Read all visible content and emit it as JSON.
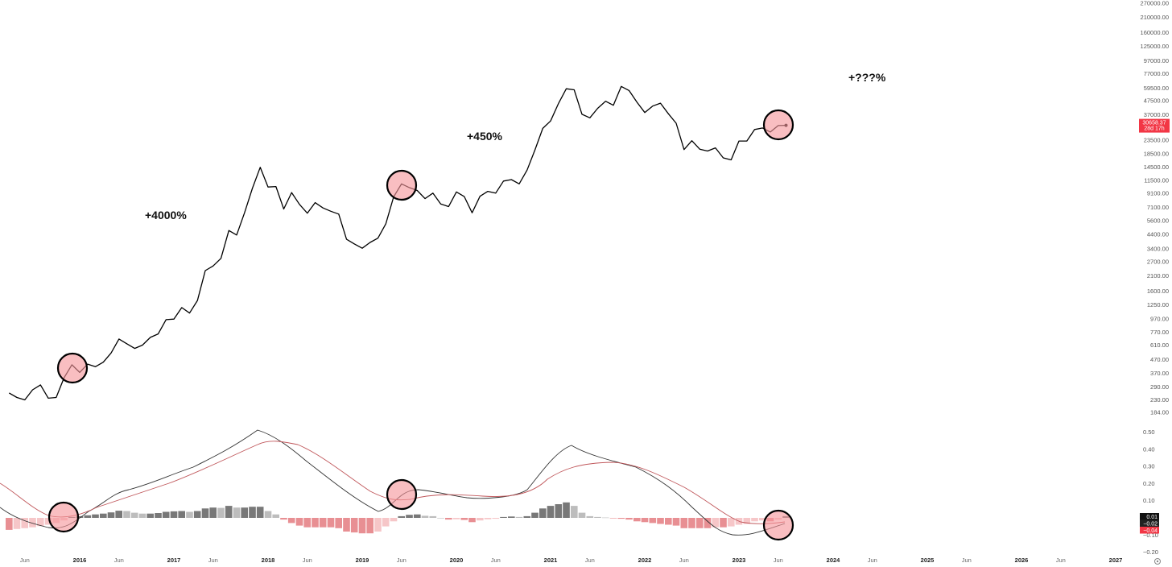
{
  "chart_data": [
    {
      "type": "line",
      "title": "",
      "yscale": "log",
      "ylim": [
        184,
        270000
      ],
      "y_ticks": [
        "270000.00",
        "210000.00",
        "160000.00",
        "125000.00",
        "97000.00",
        "77000.00",
        "59500.00",
        "47500.00",
        "37000.00",
        "23500.00",
        "18500.00",
        "14500.00",
        "11500.00",
        "9100.00",
        "7100.00",
        "5600.00",
        "4400.00",
        "3400.00",
        "2700.00",
        "2100.00",
        "1600.00",
        "1250.00",
        "970.00",
        "770.00",
        "610.00",
        "470.00",
        "370.00",
        "290.00",
        "230.00",
        "184.00"
      ],
      "x_ticks": [
        "Jun",
        "2016",
        "Jun",
        "2017",
        "Jun",
        "2018",
        "Jun",
        "2019",
        "Jun",
        "2020",
        "Jun",
        "2021",
        "Jun",
        "2022",
        "Jun",
        "2023",
        "Jun",
        "2024",
        "Jun",
        "2025",
        "Jun",
        "2026",
        "Jun",
        "2027"
      ],
      "series": [
        {
          "values": [
            {
              "x": "2015-04",
              "y": 260
            },
            {
              "x": "2015-05",
              "y": 240
            },
            {
              "x": "2015-06",
              "y": 230
            },
            {
              "x": "2015-07",
              "y": 275
            },
            {
              "x": "2015-08",
              "y": 300
            },
            {
              "x": "2015-09",
              "y": 237
            },
            {
              "x": "2015-10",
              "y": 240
            },
            {
              "x": "2015-11",
              "y": 340
            },
            {
              "x": "2015-12",
              "y": 430
            },
            {
              "x": "2016-01",
              "y": 375
            },
            {
              "x": "2016-02",
              "y": 435
            },
            {
              "x": "2016-03",
              "y": 415
            },
            {
              "x": "2016-04",
              "y": 450
            },
            {
              "x": "2016-05",
              "y": 530
            },
            {
              "x": "2016-06",
              "y": 680
            },
            {
              "x": "2016-07",
              "y": 625
            },
            {
              "x": "2016-08",
              "y": 575
            },
            {
              "x": "2016-09",
              "y": 610
            },
            {
              "x": "2016-10",
              "y": 700
            },
            {
              "x": "2016-11",
              "y": 745
            },
            {
              "x": "2016-12",
              "y": 960
            },
            {
              "x": "2017-01",
              "y": 970
            },
            {
              "x": "2017-02",
              "y": 1190
            },
            {
              "x": "2017-03",
              "y": 1080
            },
            {
              "x": "2017-04",
              "y": 1350
            },
            {
              "x": "2017-05",
              "y": 2300
            },
            {
              "x": "2017-06",
              "y": 2500
            },
            {
              "x": "2017-07",
              "y": 2860
            },
            {
              "x": "2017-08",
              "y": 4700
            },
            {
              "x": "2017-09",
              "y": 4340
            },
            {
              "x": "2017-10",
              "y": 6450
            },
            {
              "x": "2017-11",
              "y": 9950
            },
            {
              "x": "2017-12",
              "y": 14500
            },
            {
              "x": "2018-01",
              "y": 10200
            },
            {
              "x": "2018-02",
              "y": 10300
            },
            {
              "x": "2018-03",
              "y": 6900
            },
            {
              "x": "2018-04",
              "y": 9250
            },
            {
              "x": "2018-05",
              "y": 7500
            },
            {
              "x": "2018-06",
              "y": 6400
            },
            {
              "x": "2018-07",
              "y": 7730
            },
            {
              "x": "2018-08",
              "y": 7030
            },
            {
              "x": "2018-09",
              "y": 6630
            },
            {
              "x": "2018-10",
              "y": 6300
            },
            {
              "x": "2018-11",
              "y": 4020
            },
            {
              "x": "2018-12",
              "y": 3700
            },
            {
              "x": "2019-01",
              "y": 3430
            },
            {
              "x": "2019-02",
              "y": 3800
            },
            {
              "x": "2019-03",
              "y": 4100
            },
            {
              "x": "2019-04",
              "y": 5300
            },
            {
              "x": "2019-05",
              "y": 8550
            },
            {
              "x": "2019-06",
              "y": 10800
            },
            {
              "x": "2019-07",
              "y": 10100
            },
            {
              "x": "2019-08",
              "y": 9600
            },
            {
              "x": "2019-09",
              "y": 8300
            },
            {
              "x": "2019-10",
              "y": 9150
            },
            {
              "x": "2019-11",
              "y": 7550
            },
            {
              "x": "2019-12",
              "y": 7200
            },
            {
              "x": "2020-01",
              "y": 9350
            },
            {
              "x": "2020-02",
              "y": 8600
            },
            {
              "x": "2020-03",
              "y": 6450
            },
            {
              "x": "2020-04",
              "y": 8650
            },
            {
              "x": "2020-05",
              "y": 9450
            },
            {
              "x": "2020-06",
              "y": 9150
            },
            {
              "x": "2020-07",
              "y": 11350
            },
            {
              "x": "2020-08",
              "y": 11650
            },
            {
              "x": "2020-09",
              "y": 10800
            },
            {
              "x": "2020-10",
              "y": 13800
            },
            {
              "x": "2020-11",
              "y": 19700
            },
            {
              "x": "2020-12",
              "y": 29000
            },
            {
              "x": "2021-01",
              "y": 33100
            },
            {
              "x": "2021-02",
              "y": 45200
            },
            {
              "x": "2021-03",
              "y": 58800
            },
            {
              "x": "2021-04",
              "y": 57700
            },
            {
              "x": "2021-05",
              "y": 37300
            },
            {
              "x": "2021-06",
              "y": 35000
            },
            {
              "x": "2021-07",
              "y": 41500
            },
            {
              "x": "2021-08",
              "y": 47100
            },
            {
              "x": "2021-09",
              "y": 43800
            },
            {
              "x": "2021-10",
              "y": 61300
            },
            {
              "x": "2021-11",
              "y": 57000
            },
            {
              "x": "2021-12",
              "y": 46300
            },
            {
              "x": "2022-01",
              "y": 38500
            },
            {
              "x": "2022-02",
              "y": 43200
            },
            {
              "x": "2022-03",
              "y": 45500
            },
            {
              "x": "2022-04",
              "y": 37700
            },
            {
              "x": "2022-05",
              "y": 31800
            },
            {
              "x": "2022-06",
              "y": 19900
            },
            {
              "x": "2022-07",
              "y": 23300
            },
            {
              "x": "2022-08",
              "y": 20050
            },
            {
              "x": "2022-09",
              "y": 19400
            },
            {
              "x": "2022-10",
              "y": 20500
            },
            {
              "x": "2022-11",
              "y": 17150
            },
            {
              "x": "2022-12",
              "y": 16550
            },
            {
              "x": "2023-01",
              "y": 23150
            },
            {
              "x": "2023-02",
              "y": 23150
            },
            {
              "x": "2023-03",
              "y": 28450
            },
            {
              "x": "2023-04",
              "y": 29250
            },
            {
              "x": "2023-05",
              "y": 27200
            },
            {
              "x": "2023-06",
              "y": 30500
            },
            {
              "x": "2023-07",
              "y": 30658
            }
          ]
        }
      ],
      "last_price_tag": {
        "value": "30658.37",
        "sub": "28d 17h",
        "color": "#f23645"
      },
      "annotations": [
        "+4000%",
        "+450%",
        "+???%"
      ],
      "highlight_circles_at": [
        "2016-01",
        "2019-06",
        "2023-07"
      ]
    },
    {
      "type": "bar",
      "title": "",
      "ylim": [
        -0.2,
        0.55
      ],
      "y_ticks": [
        "0.50",
        "0.40",
        "0.30",
        "0.20",
        "0.10",
        "−0.10",
        "−0.20"
      ],
      "value_tags": [
        {
          "text": "0.01",
          "bg": "#111111",
          "color": "#ffffff"
        },
        {
          "text": "−0.02",
          "bg": "#222222",
          "color": "#ffffff"
        },
        {
          "text": "−0.04",
          "bg": "#f23645",
          "color": "#ffffff"
        }
      ],
      "series": [
        {
          "values": [
            {
              "x": "2015-04",
              "y": -0.07
            },
            {
              "x": "2015-05",
              "y": -0.065
            },
            {
              "x": "2015-06",
              "y": -0.06
            },
            {
              "x": "2015-07",
              "y": -0.055
            },
            {
              "x": "2015-08",
              "y": -0.048
            },
            {
              "x": "2015-09",
              "y": -0.04
            },
            {
              "x": "2015-10",
              "y": -0.03
            },
            {
              "x": "2015-11",
              "y": -0.015
            },
            {
              "x": "2015-12",
              "y": 0.005
            },
            {
              "x": "2016-01",
              "y": 0.01
            },
            {
              "x": "2016-02",
              "y": 0.015
            },
            {
              "x": "2016-03",
              "y": 0.02
            },
            {
              "x": "2016-04",
              "y": 0.025
            },
            {
              "x": "2016-05",
              "y": 0.032
            },
            {
              "x": "2016-06",
              "y": 0.042
            },
            {
              "x": "2016-07",
              "y": 0.04
            },
            {
              "x": "2016-08",
              "y": 0.03
            },
            {
              "x": "2016-09",
              "y": 0.025
            },
            {
              "x": "2016-10",
              "y": 0.025
            },
            {
              "x": "2016-11",
              "y": 0.028
            },
            {
              "x": "2016-12",
              "y": 0.035
            },
            {
              "x": "2017-01",
              "y": 0.038
            },
            {
              "x": "2017-02",
              "y": 0.04
            },
            {
              "x": "2017-03",
              "y": 0.035
            },
            {
              "x": "2017-04",
              "y": 0.04
            },
            {
              "x": "2017-05",
              "y": 0.055
            },
            {
              "x": "2017-06",
              "y": 0.06
            },
            {
              "x": "2017-07",
              "y": 0.058
            },
            {
              "x": "2017-08",
              "y": 0.07
            },
            {
              "x": "2017-09",
              "y": 0.06
            },
            {
              "x": "2017-10",
              "y": 0.06
            },
            {
              "x": "2017-11",
              "y": 0.065
            },
            {
              "x": "2017-12",
              "y": 0.065
            },
            {
              "x": "2018-01",
              "y": 0.04
            },
            {
              "x": "2018-02",
              "y": 0.02
            },
            {
              "x": "2018-03",
              "y": -0.01
            },
            {
              "x": "2018-04",
              "y": -0.03
            },
            {
              "x": "2018-05",
              "y": -0.045
            },
            {
              "x": "2018-06",
              "y": -0.055
            },
            {
              "x": "2018-07",
              "y": -0.055
            },
            {
              "x": "2018-08",
              "y": -0.055
            },
            {
              "x": "2018-09",
              "y": -0.055
            },
            {
              "x": "2018-10",
              "y": -0.06
            },
            {
              "x": "2018-11",
              "y": -0.08
            },
            {
              "x": "2018-12",
              "y": -0.085
            },
            {
              "x": "2019-01",
              "y": -0.09
            },
            {
              "x": "2019-02",
              "y": -0.09
            },
            {
              "x": "2019-03",
              "y": -0.08
            },
            {
              "x": "2019-04",
              "y": -0.05
            },
            {
              "x": "2019-05",
              "y": -0.02
            },
            {
              "x": "2019-06",
              "y": 0.01
            },
            {
              "x": "2019-07",
              "y": 0.018
            },
            {
              "x": "2019-08",
              "y": 0.02
            },
            {
              "x": "2019-09",
              "y": 0.012
            },
            {
              "x": "2019-10",
              "y": 0.01
            },
            {
              "x": "2019-11",
              "y": 0.0
            },
            {
              "x": "2019-12",
              "y": -0.01
            },
            {
              "x": "2020-01",
              "y": -0.008
            },
            {
              "x": "2020-02",
              "y": -0.012
            },
            {
              "x": "2020-03",
              "y": -0.025
            },
            {
              "x": "2020-04",
              "y": -0.015
            },
            {
              "x": "2020-05",
              "y": -0.008
            },
            {
              "x": "2020-06",
              "y": -0.005
            },
            {
              "x": "2020-07",
              "y": 0.005
            },
            {
              "x": "2020-08",
              "y": 0.008
            },
            {
              "x": "2020-09",
              "y": 0.005
            },
            {
              "x": "2020-10",
              "y": 0.01
            },
            {
              "x": "2020-11",
              "y": 0.03
            },
            {
              "x": "2020-12",
              "y": 0.055
            },
            {
              "x": "2021-01",
              "y": 0.07
            },
            {
              "x": "2021-02",
              "y": 0.08
            },
            {
              "x": "2021-03",
              "y": 0.09
            },
            {
              "x": "2021-04",
              "y": 0.07
            },
            {
              "x": "2021-05",
              "y": 0.03
            },
            {
              "x": "2021-06",
              "y": 0.01
            },
            {
              "x": "2021-07",
              "y": 0.005
            },
            {
              "x": "2021-08",
              "y": 0.002
            },
            {
              "x": "2021-09",
              "y": -0.002
            },
            {
              "x": "2021-10",
              "y": -0.005
            },
            {
              "x": "2021-11",
              "y": -0.01
            },
            {
              "x": "2021-12",
              "y": -0.02
            },
            {
              "x": "2022-01",
              "y": -0.025
            },
            {
              "x": "2022-02",
              "y": -0.03
            },
            {
              "x": "2022-03",
              "y": -0.035
            },
            {
              "x": "2022-04",
              "y": -0.04
            },
            {
              "x": "2022-05",
              "y": -0.045
            },
            {
              "x": "2022-06",
              "y": -0.06
            },
            {
              "x": "2022-07",
              "y": -0.06
            },
            {
              "x": "2022-08",
              "y": -0.06
            },
            {
              "x": "2022-09",
              "y": -0.06
            },
            {
              "x": "2022-10",
              "y": -0.055
            },
            {
              "x": "2022-11",
              "y": -0.055
            },
            {
              "x": "2022-12",
              "y": -0.05
            },
            {
              "x": "2023-01",
              "y": -0.04
            },
            {
              "x": "2023-02",
              "y": -0.035
            },
            {
              "x": "2023-03",
              "y": -0.02
            },
            {
              "x": "2023-04",
              "y": -0.015
            },
            {
              "x": "2023-05",
              "y": -0.02
            },
            {
              "x": "2023-06",
              "y": -0.01
            },
            {
              "x": "2023-07",
              "y": 0.01
            }
          ]
        }
      ]
    }
  ]
}
